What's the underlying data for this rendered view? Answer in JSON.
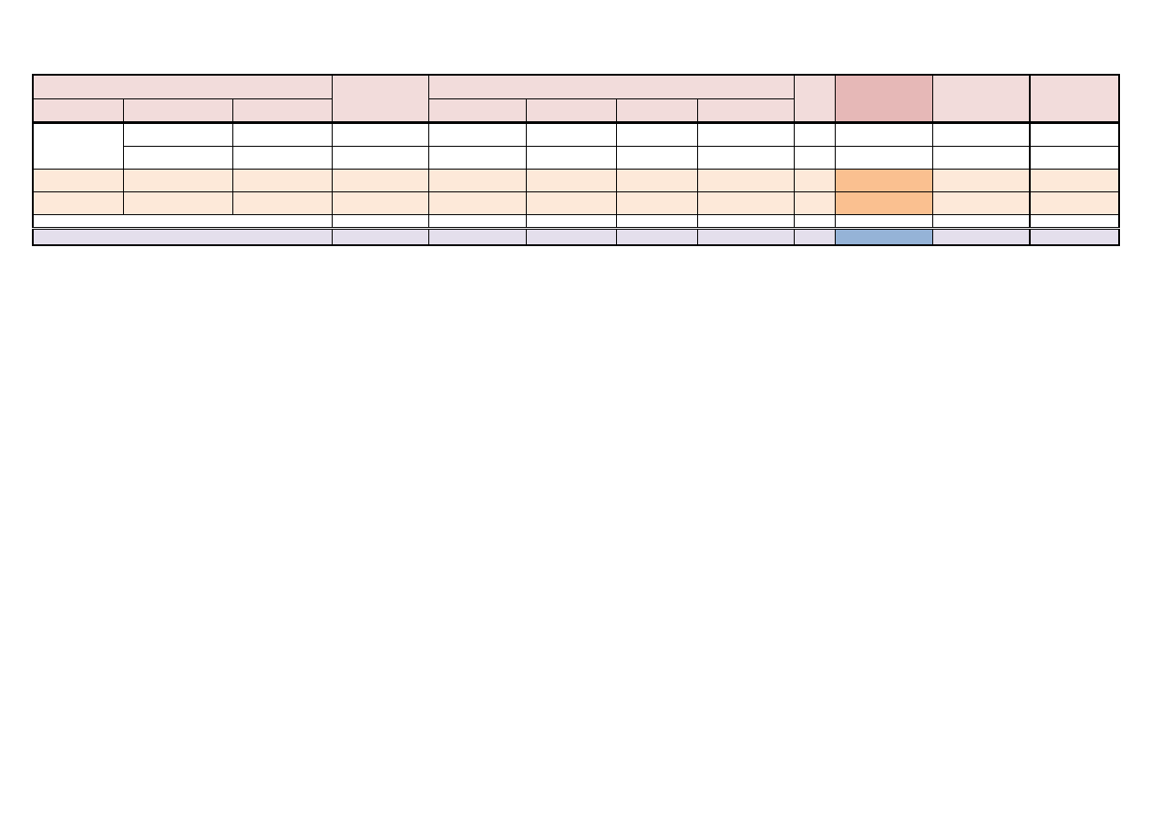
{
  "table": {
    "colors": {
      "header": "#f2dcdb",
      "header_highlight": "#e6b8b7",
      "row_peach": "#fde9d9",
      "row_peach_highlight": "#fac090",
      "total_row": "#e4dfec",
      "total_highlight": "#95b3d7"
    },
    "cells_text": []
  }
}
